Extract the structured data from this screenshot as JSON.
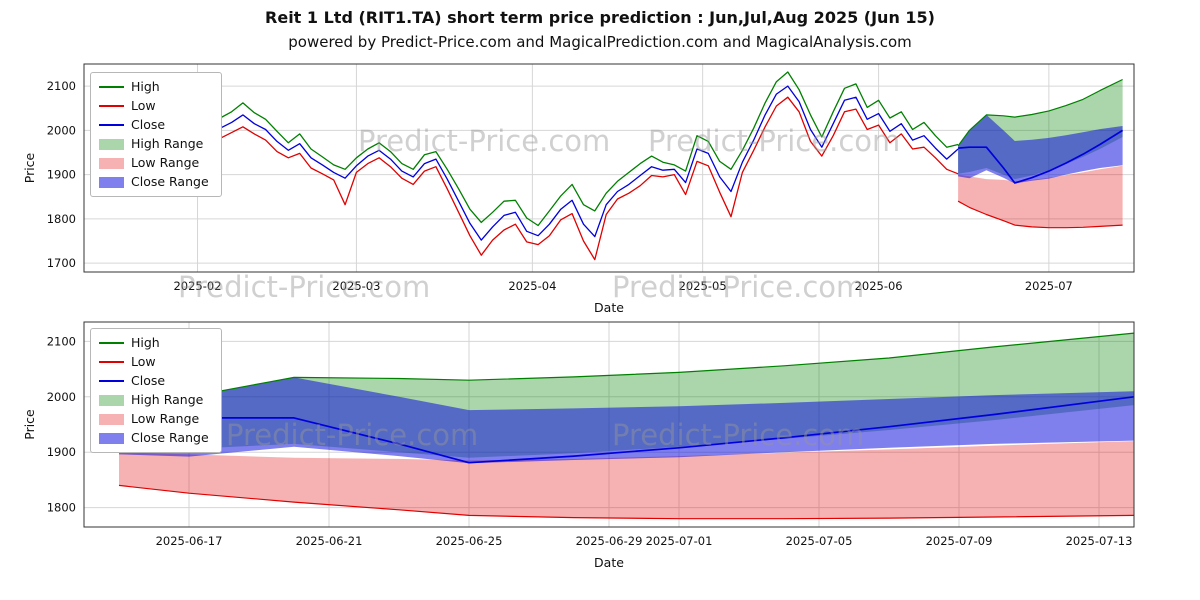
{
  "page": {
    "title": "Reit 1 Ltd (RIT1.TA) short term price prediction : Jun,Jul,Aug 2025 (Jun 15)",
    "subtitle": "powered by Predict-Price.com and MagicalPrediction.com and MagicalAnalysis.com",
    "watermark": "Predict-Price.com"
  },
  "colors": {
    "high": "#008000",
    "low": "#e00000",
    "close": "#0000dd",
    "high_range_alpha": 0.33,
    "low_range_alpha": 0.3,
    "close_range_alpha": 0.5,
    "grid": "#d6d6d6",
    "spine": "#333333",
    "tick_text": "#111111"
  },
  "legend": {
    "items": [
      {
        "label": "High",
        "kind": "line",
        "color_key": "high"
      },
      {
        "label": "Low",
        "kind": "line",
        "color_key": "low"
      },
      {
        "label": "Close",
        "kind": "line",
        "color_key": "close"
      },
      {
        "label": "High Range",
        "kind": "patch",
        "color_key": "high"
      },
      {
        "label": "Low Range",
        "kind": "patch",
        "color_key": "low"
      },
      {
        "label": "Close Range",
        "kind": "patch",
        "color_key": "close"
      }
    ]
  },
  "chart_data": [
    {
      "type": "line",
      "title": "",
      "xlabel": "Date",
      "ylabel": "Price",
      "ylim": [
        1680,
        2150
      ],
      "yticks": [
        1700,
        1800,
        1900,
        2000,
        2100
      ],
      "xlim": [
        "2025-01-12",
        "2025-07-16"
      ],
      "xticks": [
        {
          "date": "2025-02-01",
          "label": "2025-02"
        },
        {
          "date": "2025-03-01",
          "label": "2025-03"
        },
        {
          "date": "2025-04-01",
          "label": "2025-04"
        },
        {
          "date": "2025-05-01",
          "label": "2025-05"
        },
        {
          "date": "2025-06-01",
          "label": "2025-06"
        },
        {
          "date": "2025-07-01",
          "label": "2025-07"
        }
      ],
      "history": {
        "dates": [
          "2025-01-20",
          "2025-01-22",
          "2025-01-24",
          "2025-01-26",
          "2025-01-28",
          "2025-01-30",
          "2025-02-01",
          "2025-02-03",
          "2025-02-05",
          "2025-02-07",
          "2025-02-09",
          "2025-02-11",
          "2025-02-13",
          "2025-02-15",
          "2025-02-17",
          "2025-02-19",
          "2025-02-21",
          "2025-02-23",
          "2025-02-25",
          "2025-02-27",
          "2025-03-01",
          "2025-03-03",
          "2025-03-05",
          "2025-03-07",
          "2025-03-09",
          "2025-03-11",
          "2025-03-13",
          "2025-03-15",
          "2025-03-17",
          "2025-03-19",
          "2025-03-21",
          "2025-03-23",
          "2025-03-25",
          "2025-03-27",
          "2025-03-29",
          "2025-03-31",
          "2025-04-02",
          "2025-04-04",
          "2025-04-06",
          "2025-04-08",
          "2025-04-10",
          "2025-04-12",
          "2025-04-14",
          "2025-04-16",
          "2025-04-18",
          "2025-04-20",
          "2025-04-22",
          "2025-04-24",
          "2025-04-26",
          "2025-04-28",
          "2025-04-30",
          "2025-05-02",
          "2025-05-04",
          "2025-05-06",
          "2025-05-08",
          "2025-05-10",
          "2025-05-12",
          "2025-05-14",
          "2025-05-16",
          "2025-05-18",
          "2025-05-20",
          "2025-05-22",
          "2025-05-24",
          "2025-05-26",
          "2025-05-28",
          "2025-05-30",
          "2025-06-01",
          "2025-06-03",
          "2025-06-05",
          "2025-06-07",
          "2025-06-09",
          "2025-06-11",
          "2025-06-13",
          "2025-06-15"
        ],
        "high": [
          2002,
          2018,
          2042,
          2008,
          1972,
          1988,
          2000,
          2012,
          2028,
          2042,
          2062,
          2040,
          2025,
          1998,
          1972,
          1992,
          1958,
          1940,
          1922,
          1912,
          1938,
          1958,
          1972,
          1952,
          1925,
          1912,
          1945,
          1952,
          1912,
          1868,
          1822,
          1792,
          1815,
          1840,
          1842,
          1802,
          1785,
          1818,
          1852,
          1878,
          1832,
          1818,
          1858,
          1885,
          1905,
          1925,
          1942,
          1928,
          1922,
          1908,
          1988,
          1975,
          1930,
          1912,
          1955,
          2005,
          2062,
          2110,
          2132,
          2092,
          2035,
          1985,
          2042,
          2095,
          2105,
          2052,
          2068,
          2028,
          2042,
          2002,
          2018,
          1988,
          1962,
          1968
        ],
        "low": [
          1958,
          1962,
          1968,
          1938,
          1925,
          1945,
          1958,
          1968,
          1982,
          1995,
          2008,
          1992,
          1978,
          1952,
          1938,
          1948,
          1915,
          1902,
          1888,
          1832,
          1905,
          1925,
          1938,
          1918,
          1892,
          1878,
          1908,
          1918,
          1868,
          1815,
          1762,
          1718,
          1752,
          1775,
          1788,
          1748,
          1742,
          1762,
          1798,
          1812,
          1750,
          1708,
          1810,
          1845,
          1858,
          1875,
          1898,
          1895,
          1900,
          1855,
          1930,
          1920,
          1860,
          1805,
          1905,
          1955,
          2008,
          2055,
          2075,
          2042,
          1975,
          1942,
          1988,
          2042,
          2048,
          2002,
          2012,
          1972,
          1992,
          1958,
          1962,
          1938,
          1912,
          1902
        ],
        "close": [
          1982,
          1992,
          2015,
          1968,
          1948,
          1965,
          1978,
          1990,
          2005,
          2018,
          2035,
          2015,
          2002,
          1975,
          1955,
          1970,
          1938,
          1922,
          1905,
          1892,
          1920,
          1942,
          1955,
          1935,
          1908,
          1895,
          1925,
          1935,
          1890,
          1840,
          1790,
          1752,
          1782,
          1808,
          1815,
          1772,
          1762,
          1788,
          1822,
          1842,
          1788,
          1760,
          1832,
          1862,
          1878,
          1898,
          1918,
          1910,
          1912,
          1882,
          1958,
          1948,
          1895,
          1862,
          1928,
          1978,
          2035,
          2082,
          2100,
          2065,
          2002,
          1962,
          2015,
          2068,
          2075,
          2025,
          2038,
          1998,
          2015,
          1978,
          1988,
          1960,
          1935,
          1958
        ]
      },
      "forecast": {
        "dates": [
          "2025-06-15",
          "2025-06-17",
          "2025-06-20",
          "2025-06-23",
          "2025-06-25",
          "2025-06-28",
          "2025-07-01",
          "2025-07-04",
          "2025-07-07",
          "2025-07-10",
          "2025-07-14"
        ],
        "close": [
          1960,
          1962,
          1962,
          1915,
          1881,
          1893,
          1908,
          1926,
          1946,
          1968,
          2000
        ],
        "high_range": {
          "upper": [
            1965,
            2000,
            2035,
            2033,
            2030,
            2036,
            2044,
            2056,
            2070,
            2090,
            2115
          ],
          "lower": [
            1902,
            1906,
            1915,
            1900,
            1890,
            1898,
            1910,
            1924,
            1940,
            1958,
            1985
          ]
        },
        "low_range": {
          "upper": [
            1900,
            1896,
            1890,
            1888,
            1885,
            1888,
            1893,
            1899,
            1905,
            1912,
            1920
          ],
          "lower": [
            1840,
            1826,
            1810,
            1796,
            1786,
            1782,
            1780,
            1780,
            1781,
            1783,
            1786
          ]
        },
        "close_range": {
          "upper": [
            1965,
            2000,
            2035,
            2000,
            1976,
            1979,
            1983,
            1989,
            1996,
            2003,
            2010
          ],
          "lower": [
            1896,
            1892,
            1910,
            1893,
            1880,
            1886,
            1891,
            1900,
            1908,
            1915,
            1921
          ]
        }
      }
    },
    {
      "type": "line",
      "title": "",
      "xlabel": "Date",
      "ylabel": "Price",
      "ylim": [
        1765,
        2135
      ],
      "yticks": [
        1800,
        1900,
        2000,
        2100
      ],
      "xlim": [
        "2025-06-14",
        "2025-07-14"
      ],
      "xticks": [
        {
          "date": "2025-06-17",
          "label": "2025-06-17"
        },
        {
          "date": "2025-06-21",
          "label": "2025-06-21"
        },
        {
          "date": "2025-06-25",
          "label": "2025-06-25"
        },
        {
          "date": "2025-06-29",
          "label": "2025-06-29"
        },
        {
          "date": "2025-07-01",
          "label": "2025-07-01"
        },
        {
          "date": "2025-07-05",
          "label": "2025-07-05"
        },
        {
          "date": "2025-07-09",
          "label": "2025-07-09"
        },
        {
          "date": "2025-07-13",
          "label": "2025-07-13"
        }
      ],
      "forecast": {
        "dates": [
          "2025-06-15",
          "2025-06-17",
          "2025-06-20",
          "2025-06-23",
          "2025-06-25",
          "2025-06-28",
          "2025-07-01",
          "2025-07-04",
          "2025-07-07",
          "2025-07-10",
          "2025-07-14"
        ],
        "close": [
          1960,
          1962,
          1962,
          1915,
          1881,
          1893,
          1908,
          1926,
          1946,
          1968,
          2000
        ],
        "high_range": {
          "upper": [
            1965,
            2000,
            2035,
            2033,
            2030,
            2036,
            2044,
            2056,
            2070,
            2090,
            2115
          ],
          "lower": [
            1902,
            1906,
            1915,
            1900,
            1890,
            1898,
            1910,
            1924,
            1940,
            1958,
            1985
          ]
        },
        "low_range": {
          "upper": [
            1900,
            1896,
            1890,
            1888,
            1885,
            1888,
            1893,
            1899,
            1905,
            1912,
            1920
          ],
          "lower": [
            1840,
            1826,
            1810,
            1796,
            1786,
            1782,
            1780,
            1780,
            1781,
            1783,
            1786
          ]
        },
        "close_range": {
          "upper": [
            1965,
            2000,
            2035,
            2000,
            1976,
            1979,
            1983,
            1989,
            1996,
            2003,
            2010
          ],
          "lower": [
            1896,
            1892,
            1910,
            1893,
            1880,
            1886,
            1891,
            1900,
            1908,
            1915,
            1921
          ]
        }
      }
    }
  ]
}
